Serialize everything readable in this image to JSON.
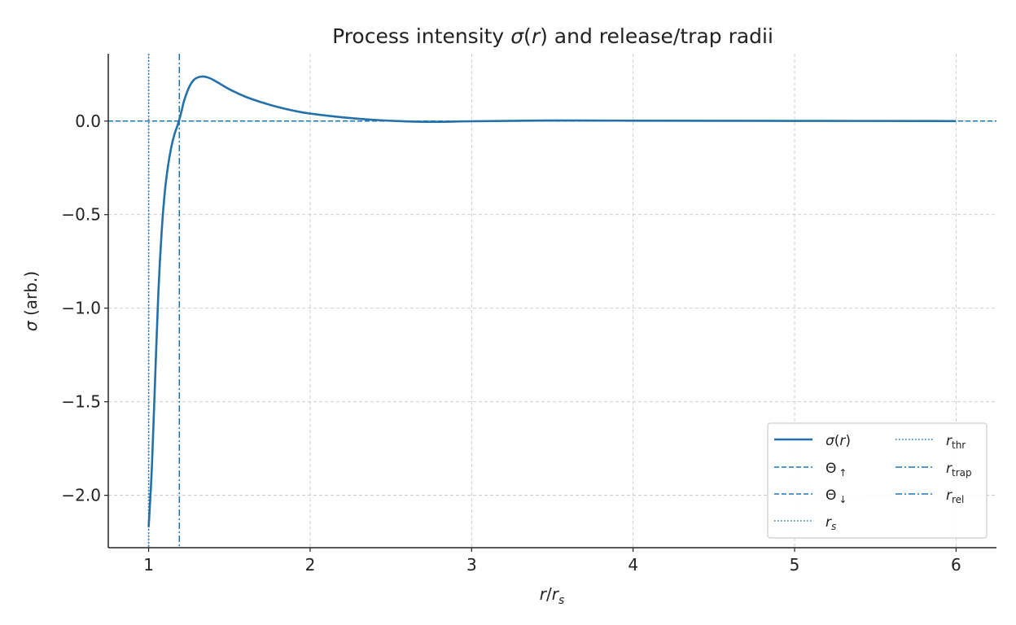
{
  "chart_data": {
    "type": "line",
    "title_parts": [
      "Process intensity ",
      "σ",
      "(",
      "r",
      ") and release/trap radii"
    ],
    "xlabel_parts": [
      "r",
      "/",
      "r",
      "s"
    ],
    "ylabel_parts": [
      "σ",
      " (arb.)"
    ],
    "xlim": [
      0.75,
      6.25
    ],
    "ylim": [
      -2.28,
      0.36
    ],
    "x_ticks": [
      1,
      2,
      3,
      4,
      5,
      6
    ],
    "x_tick_labels": [
      "1",
      "2",
      "3",
      "4",
      "5",
      "6"
    ],
    "y_ticks": [
      0.0,
      -0.5,
      -1.0,
      -1.5,
      -2.0
    ],
    "y_tick_labels": [
      "0.0",
      "−0.5",
      "−1.0",
      "−1.5",
      "−2.0"
    ],
    "grid": true,
    "legend_position": "lower-right",
    "colors": {
      "series": "#2470a9",
      "line": "#1f77b4",
      "grid": "#c8c8c8",
      "axis": "#222222",
      "text": "#222222"
    },
    "series": [
      {
        "name": "σ(r)",
        "x": [
          1.0,
          1.02,
          1.04,
          1.06,
          1.08,
          1.1,
          1.12,
          1.14,
          1.16,
          1.18,
          1.2,
          1.22,
          1.25,
          1.28,
          1.31,
          1.34,
          1.37,
          1.4,
          1.45,
          1.5,
          1.6,
          1.7,
          1.8,
          1.9,
          2.0,
          2.2,
          2.4,
          2.6,
          2.8,
          3.0,
          3.5,
          4.0,
          5.0,
          6.0
        ],
        "y": [
          -2.17,
          -1.85,
          -1.38,
          -0.92,
          -0.6,
          -0.38,
          -0.24,
          -0.14,
          -0.07,
          -0.02,
          0.04,
          0.11,
          0.18,
          0.22,
          0.235,
          0.238,
          0.232,
          0.22,
          0.195,
          0.17,
          0.13,
          0.1,
          0.075,
          0.055,
          0.04,
          0.02,
          0.006,
          -0.002,
          -0.004,
          -0.001,
          0.003,
          0.002,
          0.001,
          0.0
        ]
      }
    ],
    "reference_lines": [
      {
        "name_parts": [
          "Θ",
          "↑"
        ],
        "orientation": "horizontal",
        "value": 0.0,
        "style": "dashed"
      },
      {
        "name_parts": [
          "Θ",
          "↓"
        ],
        "orientation": "horizontal",
        "value": 0.0,
        "style": "dashed"
      },
      {
        "name_parts": [
          "r",
          "s"
        ],
        "orientation": "vertical",
        "value": 1.0,
        "style": "dotted"
      },
      {
        "name_parts": [
          "r",
          "thr"
        ],
        "orientation": "vertical",
        "value": 1.0,
        "style": "dotted"
      },
      {
        "name_parts": [
          "r",
          "trap"
        ],
        "orientation": "vertical",
        "value": 1.19,
        "style": "dashdot"
      },
      {
        "name_parts": [
          "r",
          "rel"
        ],
        "orientation": "vertical",
        "value": 1.19,
        "style": "dashdot"
      }
    ],
    "legend_entries": [
      {
        "parts": [
          "σ",
          "(",
          "r",
          ")"
        ],
        "style": "solid"
      },
      {
        "parts": [
          "Θ",
          "↑"
        ],
        "style": "dashed"
      },
      {
        "parts": [
          "Θ",
          "↓"
        ],
        "style": "dashed"
      },
      {
        "parts": [
          "r",
          "s"
        ],
        "style": "dotted"
      },
      {
        "parts": [
          "r",
          "thr"
        ],
        "style": "dotted"
      },
      {
        "parts": [
          "r",
          "trap"
        ],
        "style": "dashdot"
      },
      {
        "parts": [
          "r",
          "rel"
        ],
        "style": "dashdot"
      }
    ]
  }
}
